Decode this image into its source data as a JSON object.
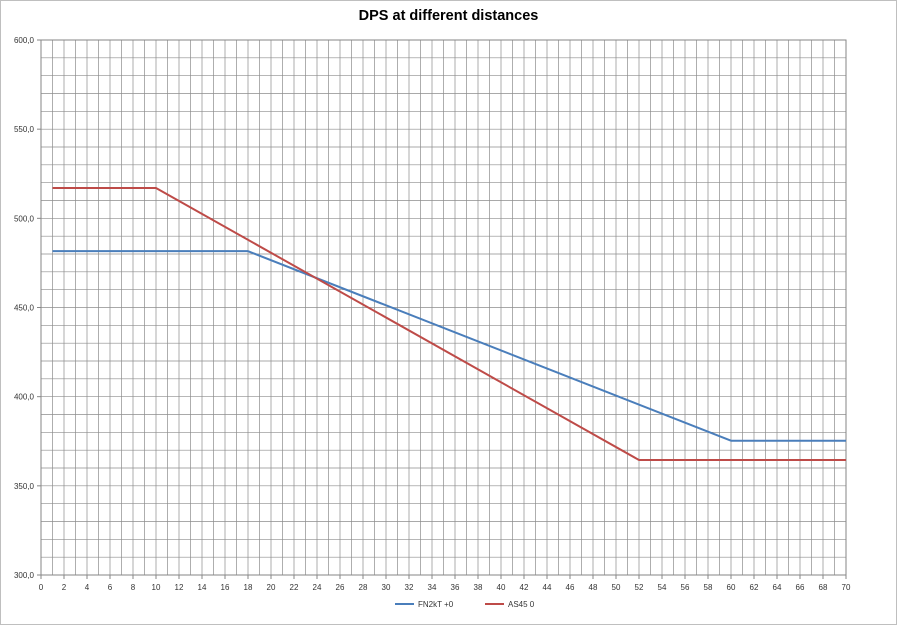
{
  "chart_data": {
    "type": "line",
    "title": "DPS at different distances",
    "xlabel": "",
    "ylabel": "",
    "xlim": [
      0,
      70
    ],
    "ylim": [
      300,
      600
    ],
    "x_ticks": [
      0,
      2,
      4,
      6,
      8,
      10,
      12,
      14,
      16,
      18,
      20,
      22,
      24,
      26,
      28,
      30,
      32,
      34,
      36,
      38,
      40,
      42,
      44,
      46,
      48,
      50,
      52,
      54,
      56,
      58,
      60,
      62,
      64,
      66,
      68,
      70
    ],
    "y_ticks": [
      "300,0",
      "350,0",
      "400,0",
      "450,0",
      "500,0",
      "550,0",
      "600,0"
    ],
    "y_tick_values": [
      300,
      350,
      400,
      450,
      500,
      550,
      600
    ],
    "grid": true,
    "legend_position": "bottom",
    "series": [
      {
        "name": "FN2kT +0",
        "color": "#4a7ebb",
        "x": [
          1,
          18,
          60,
          70
        ],
        "y": [
          481.6,
          481.6,
          375.3,
          375.3
        ]
      },
      {
        "name": "AS45 0",
        "color": "#be4b48",
        "x": [
          1,
          10,
          52,
          70
        ],
        "y": [
          517.0,
          517.0,
          364.5,
          364.5
        ]
      }
    ]
  }
}
